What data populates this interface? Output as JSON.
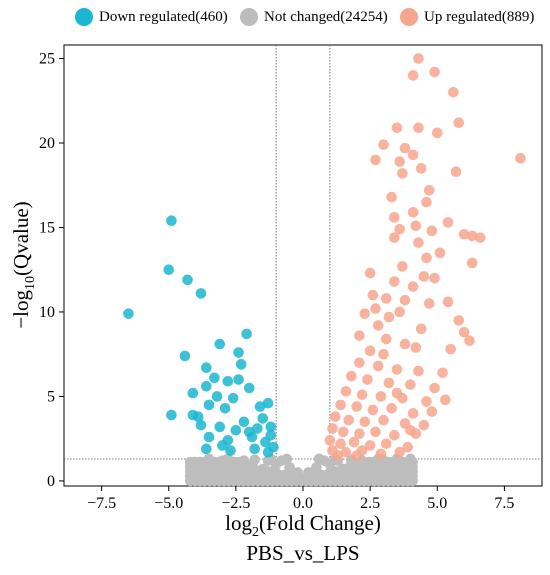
{
  "chart_data": {
    "type": "scatter",
    "title": "",
    "xlabel_main": "log",
    "xlabel_sub": "2",
    "xlabel_rest": "(Fold Change)",
    "ylabel_main": "−log",
    "ylabel_sub": "10",
    "ylabel_rest": "(Qvalue)",
    "subtitle": "PBS_vs_LPS",
    "xlim": [
      -8.9,
      8.9
    ],
    "ylim": [
      -0.3,
      25.8
    ],
    "x_ticks": [
      -7.5,
      -5.0,
      -2.5,
      0.0,
      2.5,
      5.0,
      7.5
    ],
    "x_tick_labels": [
      "−7.5",
      "−5.0",
      "−2.5",
      "0.0",
      "2.5",
      "5.0",
      "7.5"
    ],
    "y_ticks": [
      0,
      5,
      10,
      15,
      20,
      25
    ],
    "y_tick_labels": [
      "0",
      "5",
      "10",
      "15",
      "20",
      "25"
    ],
    "thresholds": {
      "log2fc": [
        -1,
        1
      ],
      "neg_log10_q": 1.3
    },
    "legend_position": "top",
    "grid": false,
    "series": [
      {
        "name": "Down regulated(460)",
        "color": "#1BB6D0",
        "points": [
          [
            -6.5,
            9.9
          ],
          [
            -4.9,
            15.4
          ],
          [
            -5.0,
            12.5
          ],
          [
            -4.3,
            11.9
          ],
          [
            -3.8,
            11.1
          ],
          [
            -2.1,
            8.7
          ],
          [
            -3.1,
            8.1
          ],
          [
            -4.4,
            7.4
          ],
          [
            -3.6,
            6.7
          ],
          [
            -2.4,
            7.6
          ],
          [
            -2.3,
            6.9
          ],
          [
            -3.3,
            6.1
          ],
          [
            -2.8,
            5.9
          ],
          [
            -3.6,
            5.6
          ],
          [
            -2.4,
            6.0
          ],
          [
            -2.0,
            5.5
          ],
          [
            -4.1,
            5.2
          ],
          [
            -3.2,
            5.0
          ],
          [
            -2.6,
            4.9
          ],
          [
            -4.9,
            3.9
          ],
          [
            -4.1,
            3.9
          ],
          [
            -3.9,
            3.8
          ],
          [
            -3.5,
            4.5
          ],
          [
            -2.9,
            4.3
          ],
          [
            -1.6,
            4.4
          ],
          [
            -1.3,
            4.6
          ],
          [
            -3.8,
            3.3
          ],
          [
            -3.1,
            3.2
          ],
          [
            -2.2,
            3.5
          ],
          [
            -1.5,
            3.7
          ],
          [
            -1.2,
            3.2
          ],
          [
            -3.5,
            2.6
          ],
          [
            -2.8,
            2.4
          ],
          [
            -1.9,
            2.6
          ],
          [
            -1.4,
            2.3
          ],
          [
            -3.6,
            1.9
          ],
          [
            -2.7,
            1.8
          ],
          [
            -1.8,
            1.9
          ],
          [
            -1.3,
            1.7
          ],
          [
            -1.1,
            2.0
          ],
          [
            -3.0,
            2.1
          ],
          [
            -2.0,
            2.9
          ],
          [
            -1.7,
            3.1
          ],
          [
            -2.5,
            3.0
          ],
          [
            -1.2,
            2.7
          ]
        ]
      },
      {
        "name": "Not changed(24254)",
        "color": "#BDBDBD",
        "points": [
          [
            -3.5,
            1.3
          ],
          [
            -3.0,
            1.2
          ],
          [
            -2.5,
            1.1
          ],
          [
            -2.0,
            0.9
          ],
          [
            -1.5,
            0.7
          ],
          [
            -1.0,
            0.5
          ],
          [
            -0.7,
            0.35
          ],
          [
            -0.4,
            0.2
          ],
          [
            0.0,
            0.1
          ],
          [
            0.4,
            0.2
          ],
          [
            0.7,
            0.35
          ],
          [
            1.0,
            0.5
          ],
          [
            1.5,
            0.7
          ],
          [
            2.0,
            0.9
          ],
          [
            2.5,
            1.1
          ],
          [
            3.0,
            1.2
          ],
          [
            3.5,
            1.3
          ],
          [
            4.0,
            1.3
          ],
          [
            -1.0,
            1.0
          ],
          [
            -0.8,
            1.2
          ],
          [
            0.8,
            1.2
          ],
          [
            1.0,
            1.0
          ],
          [
            -0.6,
            1.3
          ],
          [
            0.6,
            1.3
          ],
          [
            -1.2,
            1.3
          ],
          [
            1.2,
            1.3
          ],
          [
            1.8,
            1.25
          ],
          [
            -1.8,
            1.25
          ],
          [
            2.8,
            1.3
          ],
          [
            -2.8,
            1.3
          ],
          [
            0.2,
            0.5
          ],
          [
            -0.2,
            0.5
          ],
          [
            0.5,
            0.8
          ],
          [
            -0.5,
            0.8
          ],
          [
            1.3,
            1.2
          ],
          [
            -1.3,
            1.2
          ],
          [
            2.2,
            1.2
          ],
          [
            -2.2,
            1.2
          ]
        ]
      },
      {
        "name": "Up regulated(889)",
        "color": "#F8A58D",
        "points": [
          [
            4.3,
            25.0
          ],
          [
            4.1,
            24.0
          ],
          [
            4.9,
            24.2
          ],
          [
            5.6,
            23.0
          ],
          [
            5.8,
            21.2
          ],
          [
            3.5,
            20.9
          ],
          [
            4.3,
            20.9
          ],
          [
            5.0,
            20.6
          ],
          [
            3.0,
            19.9
          ],
          [
            3.8,
            19.7
          ],
          [
            4.1,
            19.3
          ],
          [
            8.1,
            19.1
          ],
          [
            2.7,
            19.0
          ],
          [
            3.6,
            18.9
          ],
          [
            4.4,
            18.5
          ],
          [
            5.7,
            18.3
          ],
          [
            3.7,
            18.2
          ],
          [
            4.7,
            17.2
          ],
          [
            3.3,
            16.8
          ],
          [
            4.6,
            16.5
          ],
          [
            4.1,
            15.9
          ],
          [
            3.4,
            15.6
          ],
          [
            5.4,
            15.3
          ],
          [
            4.2,
            15.1
          ],
          [
            3.6,
            14.9
          ],
          [
            4.8,
            14.8
          ],
          [
            6.0,
            14.6
          ],
          [
            6.3,
            14.5
          ],
          [
            6.6,
            14.4
          ],
          [
            3.4,
            14.4
          ],
          [
            4.3,
            14.1
          ],
          [
            5.1,
            13.5
          ],
          [
            4.6,
            13.2
          ],
          [
            6.3,
            12.9
          ],
          [
            3.7,
            12.7
          ],
          [
            2.5,
            12.3
          ],
          [
            4.5,
            12.1
          ],
          [
            4.9,
            12.0
          ],
          [
            3.4,
            11.8
          ],
          [
            4.1,
            11.5
          ],
          [
            2.6,
            11.0
          ],
          [
            3.1,
            10.8
          ],
          [
            3.8,
            10.7
          ],
          [
            5.4,
            10.6
          ],
          [
            2.7,
            10.2
          ],
          [
            4.7,
            10.5
          ],
          [
            3.6,
            10.0
          ],
          [
            3.2,
            9.7
          ],
          [
            2.3,
            9.9
          ],
          [
            5.8,
            9.5
          ],
          [
            2.8,
            9.2
          ],
          [
            4.4,
            9.0
          ],
          [
            6.0,
            8.8
          ],
          [
            6.2,
            8.3
          ],
          [
            2.1,
            8.6
          ],
          [
            3.1,
            8.4
          ],
          [
            3.8,
            8.1
          ],
          [
            4.2,
            7.9
          ],
          [
            2.5,
            7.7
          ],
          [
            3.0,
            7.5
          ],
          [
            5.5,
            7.8
          ],
          [
            2.1,
            7.0
          ],
          [
            2.8,
            6.8
          ],
          [
            3.5,
            6.6
          ],
          [
            4.3,
            6.5
          ],
          [
            5.2,
            6.4
          ],
          [
            1.8,
            6.2
          ],
          [
            2.4,
            6.0
          ],
          [
            3.2,
            5.8
          ],
          [
            4.0,
            5.7
          ],
          [
            4.9,
            5.5
          ],
          [
            1.6,
            5.3
          ],
          [
            2.2,
            5.1
          ],
          [
            2.9,
            5.0
          ],
          [
            3.7,
            4.9
          ],
          [
            4.6,
            4.7
          ],
          [
            5.3,
            4.8
          ],
          [
            1.4,
            4.5
          ],
          [
            2.0,
            4.4
          ],
          [
            2.6,
            4.2
          ],
          [
            3.3,
            4.3
          ],
          [
            4.1,
            4.0
          ],
          [
            4.8,
            4.1
          ],
          [
            1.2,
            3.8
          ],
          [
            1.7,
            3.6
          ],
          [
            2.3,
            3.5
          ],
          [
            3.0,
            3.6
          ],
          [
            3.8,
            3.4
          ],
          [
            4.5,
            3.3
          ],
          [
            1.1,
            3.1
          ],
          [
            1.5,
            2.9
          ],
          [
            2.1,
            2.8
          ],
          [
            2.7,
            2.9
          ],
          [
            3.4,
            2.7
          ],
          [
            4.2,
            2.8
          ],
          [
            1.0,
            2.4
          ],
          [
            1.4,
            2.2
          ],
          [
            1.9,
            2.3
          ],
          [
            2.5,
            2.1
          ],
          [
            3.1,
            2.2
          ],
          [
            3.9,
            2.0
          ],
          [
            1.1,
            1.8
          ],
          [
            1.6,
            1.7
          ],
          [
            2.2,
            1.8
          ],
          [
            2.9,
            1.6
          ],
          [
            3.6,
            1.7
          ],
          [
            1.3,
            1.5
          ],
          [
            2.0,
            1.5
          ],
          [
            4.0,
            3.0
          ],
          [
            3.5,
            5.2
          ]
        ]
      }
    ]
  }
}
